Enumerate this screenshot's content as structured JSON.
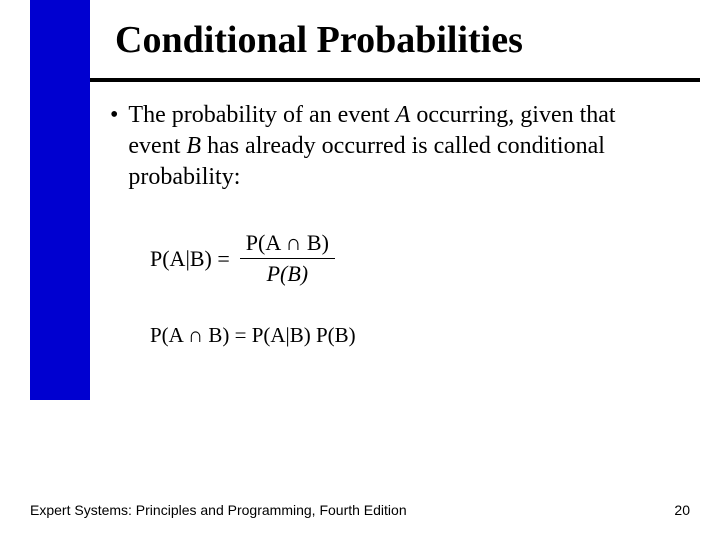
{
  "colors": {
    "accent_bar": "#0000d0",
    "background": "#ffffff",
    "text": "#000000",
    "rule": "#000000"
  },
  "title": "Conditional Probabilities",
  "bullet": {
    "pre": "The probability of an event ",
    "varA": "A",
    "mid1": " occurring, given that event ",
    "varB": "B",
    "post": " has already occurred is called conditional probability:"
  },
  "formula1": {
    "lhs": "P(A|B) = ",
    "numerator": "P(A ∩ B)",
    "denominator": "P(B)"
  },
  "formula2": "P(A ∩ B) = P(A|B) P(B)",
  "footer": {
    "left": "Expert Systems: Principles and Programming, Fourth Edition",
    "page": "20"
  }
}
